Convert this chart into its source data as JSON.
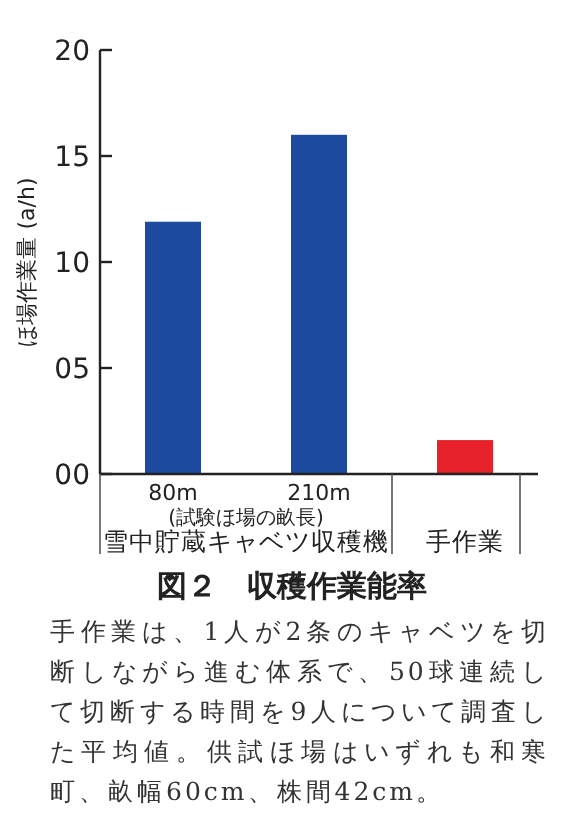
{
  "chart_data": {
    "type": "bar",
    "title": "図２　収穫作業能率",
    "ylabel": "ほ場作業量 (a/h)",
    "categories": [
      "80m",
      "210m",
      null
    ],
    "values": [
      11.9,
      16.0,
      1.6
    ],
    "colors": [
      "#1c4a9e",
      "#1c4a9e",
      "#e62129"
    ],
    "ylim": [
      0,
      20
    ],
    "yticks": [
      {
        "value": 0,
        "label": "00"
      },
      {
        "value": 5,
        "label": "05"
      },
      10,
      15,
      20
    ],
    "annotations": [
      "(試験ほ場の畝長)",
      "雪中貯蔵キャベツ収穫機",
      "手作業",
      "手作業は、1人が2条のキャベツを切断しながら進む体系で、50球連続して切断する時間を9人について調査した平均値。供試ほ場はいずれも和寒町、畝幅60cm、株間42cm。"
    ],
    "grid": false
  }
}
